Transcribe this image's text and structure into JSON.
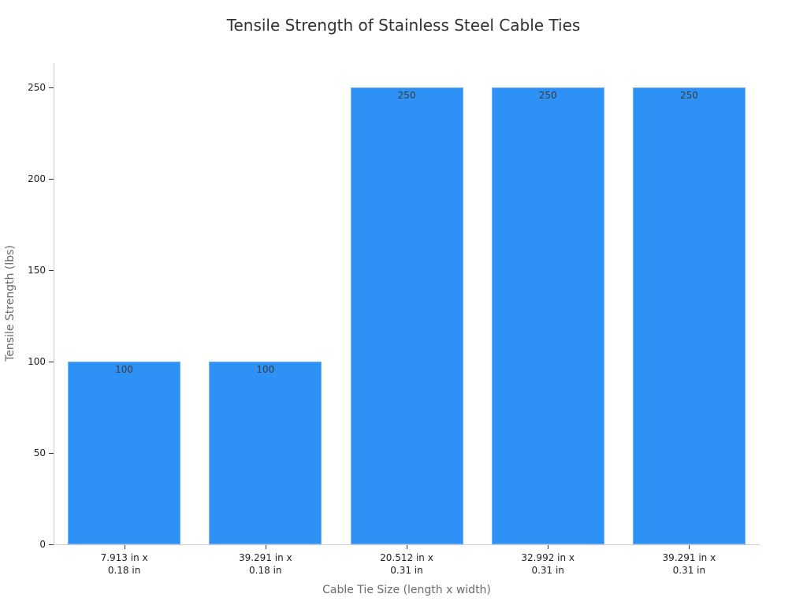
{
  "chart_data": {
    "type": "bar",
    "title": "Tensile Strength of Stainless Steel Cable Ties",
    "xlabel": "Cable Tie Size (length x width)",
    "ylabel": "Tensile Strength (lbs)",
    "categories": [
      "7.913 in x 0.18 in",
      "39.291 in x 0.18 in",
      "20.512 in x 0.31 in",
      "32.992 in x 0.31 in",
      "39.291 in x 0.31 in"
    ],
    "category_lines": [
      [
        "7.913 in x",
        "0.18 in"
      ],
      [
        "39.291 in x",
        "0.18 in"
      ],
      [
        "20.512 in x",
        "0.31 in"
      ],
      [
        "32.992 in x",
        "0.31 in"
      ],
      [
        "39.291 in x",
        "0.31 in"
      ]
    ],
    "values": [
      100,
      100,
      250,
      250,
      250
    ],
    "data_labels": [
      "100",
      "100",
      "250",
      "250",
      "250"
    ],
    "yticks": [
      0,
      50,
      100,
      150,
      200,
      250
    ],
    "ylim": [
      0,
      263
    ],
    "grid": false,
    "legend": "none",
    "bar_color": "#2e91f6"
  }
}
